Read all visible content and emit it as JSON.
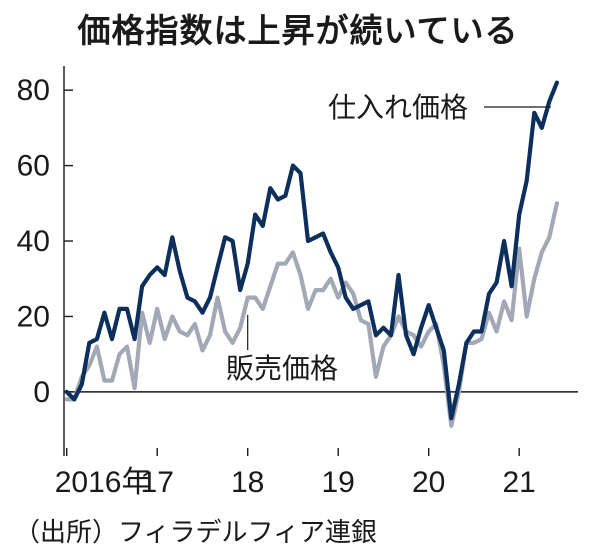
{
  "title": "価格指数は上昇が続いている",
  "source": "（出所）フィラデルフィア連銀",
  "chart_data": {
    "type": "line",
    "title": "価格指数は上昇が続いている",
    "xlabel": "",
    "ylabel": "",
    "ylim": [
      -17,
      88
    ],
    "xlim": [
      2015.97,
      2021.65
    ],
    "yticks": [
      0,
      20,
      40,
      60,
      80
    ],
    "xticks": [
      {
        "x": 2016,
        "label": "2016年"
      },
      {
        "x": 2017,
        "label": "17"
      },
      {
        "x": 2018,
        "label": "18"
      },
      {
        "x": 2019,
        "label": "19"
      },
      {
        "x": 2020,
        "label": "20"
      },
      {
        "x": 2021,
        "label": "21"
      }
    ],
    "grid": false,
    "legend": "none",
    "series": [
      {
        "name": "仕入れ価格",
        "color": "#0d2f5c",
        "x_start": 2016.0,
        "step": 0.0833333,
        "values": [
          0,
          -2,
          2,
          13,
          14,
          21,
          14,
          22,
          22,
          14,
          28,
          31,
          33,
          31,
          41,
          32,
          25,
          24,
          21,
          25,
          33,
          41,
          40,
          27,
          34,
          47,
          44,
          54,
          51,
          52,
          60,
          58,
          40,
          41,
          42,
          37,
          33,
          25,
          22,
          23,
          24,
          15,
          17,
          15,
          31,
          15,
          10,
          17,
          23,
          17,
          11,
          -7,
          2,
          13,
          16,
          16,
          26,
          29,
          40,
          28,
          47,
          56,
          74,
          70,
          77,
          82
        ]
      },
      {
        "name": "販売価格",
        "color": "#a3a8b6",
        "x_start": 2016.0,
        "step": 0.0833333,
        "values": [
          -2,
          -2,
          4,
          7,
          12,
          3,
          3,
          10,
          12,
          1,
          21,
          13,
          22,
          14,
          20,
          16,
          15,
          18,
          11,
          15,
          25,
          16,
          13,
          17,
          25,
          25,
          22,
          28,
          34,
          34,
          37,
          31,
          22,
          27,
          27,
          30,
          25,
          29,
          26,
          19,
          18,
          4,
          12,
          15,
          20,
          16,
          15,
          12,
          16,
          18,
          7,
          -9,
          0,
          13,
          13,
          14,
          21,
          16,
          24,
          19,
          38,
          20,
          30,
          37,
          41,
          50
        ]
      }
    ]
  }
}
